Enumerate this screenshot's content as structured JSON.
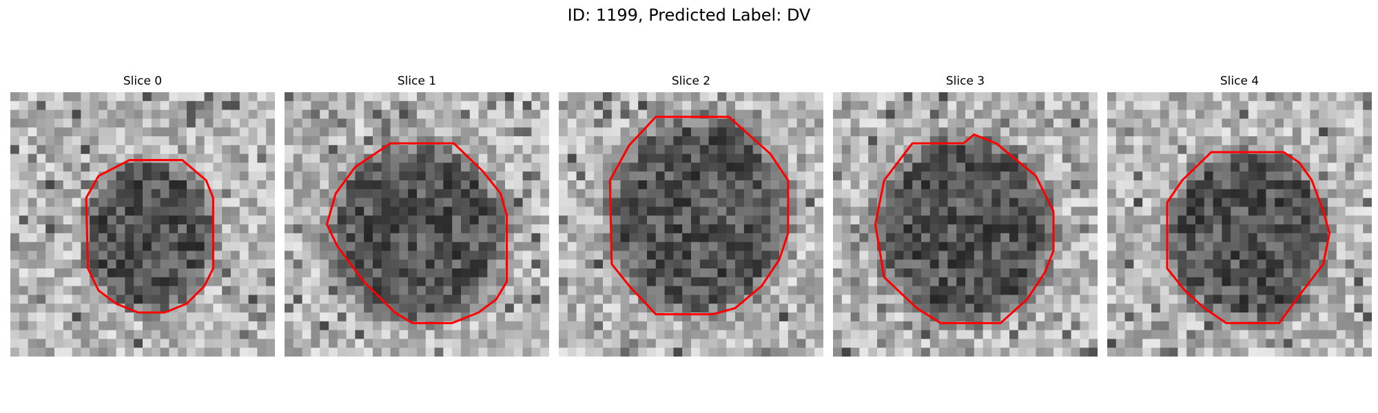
{
  "figure": {
    "title": "ID: 1199, Predicted Label: DV"
  },
  "panels": [
    {
      "title": "Slice 0"
    },
    {
      "title": "Slice 1"
    },
    {
      "title": "Slice 2"
    },
    {
      "title": "Slice 3"
    },
    {
      "title": "Slice 4"
    }
  ],
  "colors": {
    "contour": "#ff0000",
    "background": "#ffffff"
  }
}
